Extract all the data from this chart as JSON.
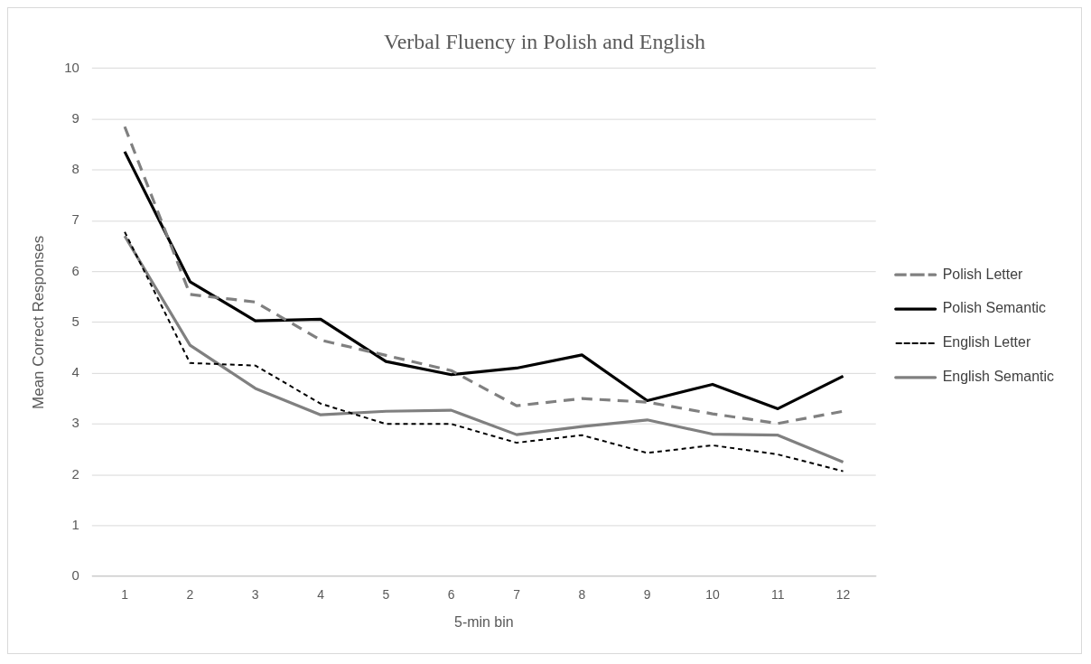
{
  "chart_data": {
    "type": "line",
    "title": "Verbal Fluency in Polish and English",
    "xlabel": "5-min bin",
    "ylabel": "Mean Correct Responses",
    "categories": [
      "1",
      "2",
      "3",
      "4",
      "5",
      "6",
      "7",
      "8",
      "9",
      "10",
      "11",
      "12"
    ],
    "series": [
      {
        "name": "Polish Letter",
        "color": "#808080",
        "line_style": "dashed",
        "values": [
          8.85,
          5.55,
          5.4,
          4.65,
          4.35,
          4.05,
          3.36,
          3.5,
          3.43,
          3.2,
          3.01,
          3.25
        ]
      },
      {
        "name": "Polish Semantic",
        "color": "#000000",
        "line_style": "solid",
        "values": [
          8.36,
          5.8,
          5.03,
          5.06,
          4.23,
          3.97,
          4.1,
          4.36,
          3.46,
          3.78,
          3.3,
          3.94
        ]
      },
      {
        "name": "English Letter",
        "color": "#000000",
        "line_style": "dashed",
        "values": [
          6.78,
          4.2,
          4.15,
          3.4,
          3.0,
          3.0,
          2.63,
          2.78,
          2.43,
          2.58,
          2.4,
          2.07
        ]
      },
      {
        "name": "English Semantic",
        "color": "#808080",
        "line_style": "solid",
        "values": [
          6.7,
          4.55,
          3.7,
          3.18,
          3.25,
          3.27,
          2.79,
          2.95,
          3.08,
          2.8,
          2.78,
          2.25
        ]
      }
    ],
    "ylim": [
      0,
      10
    ],
    "yticks": [
      0,
      1,
      2,
      3,
      4,
      5,
      6,
      7,
      8,
      9,
      10
    ],
    "grid": "y",
    "legend": "right",
    "marker": "none"
  }
}
